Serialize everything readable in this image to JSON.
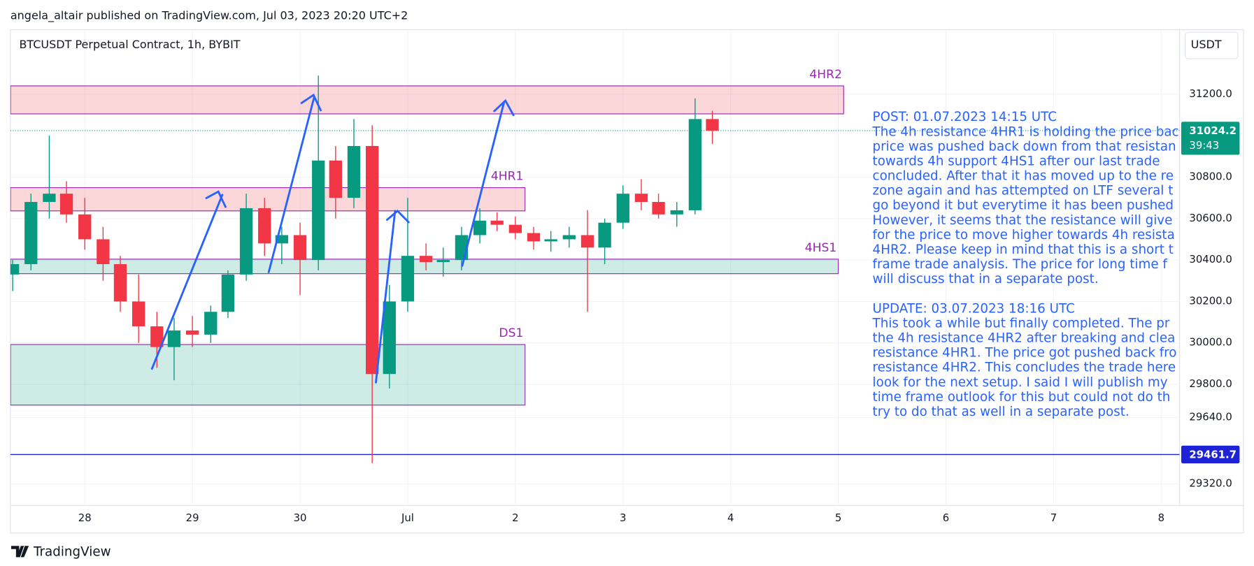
{
  "header": "angela_altair published on TradingView.com, Jul 03, 2023 20:20 UTC+2",
  "footer": "TradingView",
  "chart_data": {
    "type": "candlestick",
    "title": "BTCUSDT Perpetual Contract, 1h, BYBIT",
    "currency": "USDT",
    "up_color": "#089981",
    "down_color": "#f23645",
    "x": [
      27.33,
      27.5,
      27.67,
      27.83,
      28.0,
      28.17,
      28.33,
      28.5,
      28.67,
      28.83,
      29.0,
      29.17,
      29.33,
      29.5,
      29.67,
      29.83,
      30.0,
      30.17,
      30.33,
      30.5,
      30.67,
      30.83,
      31.0,
      31.17,
      31.33,
      31.5,
      31.67,
      31.83,
      32.0,
      32.17,
      32.33,
      32.5,
      32.67,
      32.83,
      33.0,
      33.17,
      33.33,
      33.5,
      33.67,
      33.83
    ],
    "open": [
      30330,
      30380,
      30680,
      30720,
      30620,
      30500,
      30380,
      30200,
      30080,
      29980,
      30060,
      30040,
      30150,
      30330,
      30650,
      30480,
      30520,
      30400,
      30880,
      30700,
      30950,
      29850,
      30200,
      30420,
      30390,
      30400,
      30520,
      30590,
      30570,
      30530,
      30490,
      30500,
      30520,
      30460,
      30580,
      30720,
      30680,
      30620,
      30640,
      31080
    ],
    "high": [
      30400,
      30720,
      31000,
      30780,
      30700,
      30560,
      30420,
      30330,
      30150,
      30120,
      30130,
      30180,
      30350,
      30720,
      30700,
      30560,
      30580,
      31290,
      30950,
      31080,
      31050,
      30280,
      30700,
      30480,
      30460,
      30560,
      30650,
      30630,
      30610,
      30560,
      30540,
      30560,
      30640,
      30600,
      30760,
      30790,
      30720,
      30680,
      31180,
      31120
    ],
    "low": [
      30250,
      30350,
      30600,
      30580,
      30450,
      30300,
      30150,
      30000,
      29880,
      29820,
      29980,
      30000,
      30120,
      30300,
      30420,
      30380,
      30230,
      30350,
      30600,
      30650,
      29420,
      29780,
      30150,
      30350,
      30320,
      30350,
      30480,
      30540,
      30500,
      30450,
      30440,
      30460,
      30150,
      30380,
      30550,
      30640,
      30600,
      30560,
      30620,
      30960
    ],
    "close": [
      30380,
      30680,
      30720,
      30620,
      30500,
      30380,
      30200,
      30080,
      29980,
      30060,
      30040,
      30150,
      30330,
      30650,
      30480,
      30520,
      30400,
      30880,
      30700,
      30950,
      29850,
      30200,
      30420,
      30390,
      30400,
      30520,
      30590,
      30570,
      30530,
      30490,
      30500,
      30520,
      30460,
      30580,
      30720,
      30680,
      30620,
      30640,
      31080,
      31024.2
    ],
    "xlim": [
      27.309,
      38.171
    ],
    "ylim": [
      29215,
      31510.7
    ],
    "xticks": [
      28,
      29,
      30,
      {
        "value": 31,
        "label": "Jul"
      },
      {
        "value": 32,
        "label": "2"
      },
      {
        "value": 33,
        "label": "3"
      },
      {
        "value": 34,
        "label": "4"
      },
      {
        "value": 35,
        "label": "5"
      },
      {
        "value": 36,
        "label": "6"
      },
      {
        "value": 37,
        "label": "7"
      },
      {
        "value": 38,
        "label": "8"
      }
    ],
    "yticks": [
      {
        "value": 31200,
        "label": "31200.0"
      },
      {
        "value": 30800,
        "label": "30800.0"
      },
      {
        "value": 30600,
        "label": "30600.0"
      },
      {
        "value": 30400,
        "label": "30400.0"
      },
      {
        "value": 30200,
        "label": "30200.0"
      },
      {
        "value": 30000,
        "label": "30000.0"
      },
      {
        "value": 29800,
        "label": "29800.0"
      },
      {
        "value": 29640,
        "label": "29640.0"
      },
      {
        "value": 29320,
        "label": "29320.0"
      }
    ],
    "grid": true,
    "last_price": 31024.2,
    "countdown": "39:43",
    "horizontal_line": 29461.7,
    "zones": [
      {
        "name": "4HR2",
        "top": 31240,
        "bottom": 31105,
        "start": 27.31,
        "end": 35.05,
        "color": "#f23645"
      },
      {
        "name": "4HR1",
        "top": 30749,
        "bottom": 30637,
        "start": 27.31,
        "end": 32.09,
        "color": "#f23645"
      },
      {
        "name": "4HS1",
        "top": 30404,
        "bottom": 30334,
        "start": 27.31,
        "end": 35.0,
        "color": "#089981"
      },
      {
        "name": "DS1",
        "top": 29992,
        "bottom": 29700,
        "start": 27.31,
        "end": 32.09,
        "color": "#089981"
      }
    ],
    "note": [
      "POST: 01.07.2023 14:15 UTC",
      "The 4h resistance 4HR1 is holding the price bac",
      "price was pushed back down from that resistan",
      "towards 4h support 4HS1 after our last trade",
      "concluded. After that it has moved up to the re",
      "zone again and has attempted on LTF several t",
      "go beyond it but everytime it has been pushed",
      "However, it seems that the resistance will give",
      "for the price to move higher towards 4h resista",
      "4HR2. Please keep in mind that this is a short t",
      "frame trade analysis. The price for long time f",
      "will discuss that in a separate post.",
      null,
      "UPDATE: 03.07.2023 18:16 UTC",
      "This took a while but finally completed. The pr",
      "the 4h resistance 4HR2 after breaking and clea",
      "resistance 4HR1. The price got pushed back fro",
      "resistance 4HR2. This concludes the trade here",
      "look for the next setup. I said I will publish my",
      "time frame outlook for this but could not do th",
      "try to do that as well in a separate post."
    ]
  }
}
